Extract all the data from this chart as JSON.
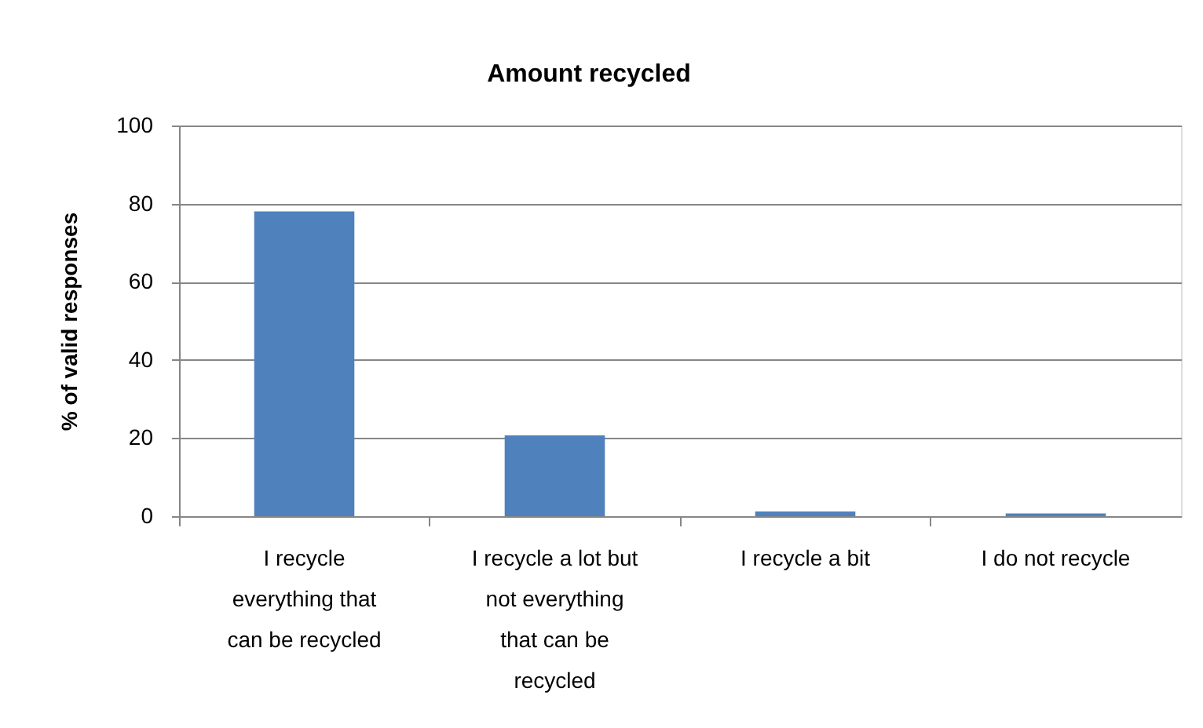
{
  "chart_data": {
    "type": "bar",
    "title": "Amount recycled",
    "ylabel": "% of valid responses",
    "categories": [
      "I recycle everything that can be recycled",
      "I recycle a lot but not everything that can be recycled",
      "I recycle a bit",
      "I do not recycle"
    ],
    "values": [
      78,
      20.7,
      1.2,
      0.7
    ],
    "color": "#4f81bd",
    "ylim": [
      0,
      100
    ],
    "yticks": [
      0,
      20,
      40,
      60,
      80,
      100
    ],
    "grid": "y"
  }
}
